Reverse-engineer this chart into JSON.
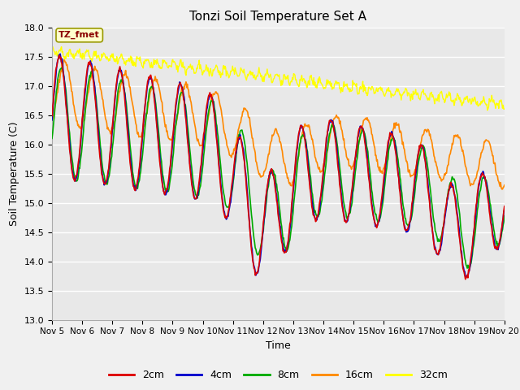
{
  "title": "Tonzi Soil Temperature Set A",
  "xlabel": "Time",
  "ylabel": "Soil Temperature (C)",
  "ylim": [
    13.0,
    18.0
  ],
  "yticks": [
    13.0,
    13.5,
    14.0,
    14.5,
    15.0,
    15.5,
    16.0,
    16.5,
    17.0,
    17.5,
    18.0
  ],
  "xtick_labels": [
    "Nov 5",
    "Nov 6",
    "Nov 7",
    "Nov 8",
    "Nov 9",
    "Nov 10",
    "Nov 11",
    "Nov 12",
    "Nov 13",
    "Nov 14",
    "Nov 15",
    "Nov 16",
    "Nov 17",
    "Nov 18",
    "Nov 19",
    "Nov 20"
  ],
  "colors": {
    "2cm": "#dd0000",
    "4cm": "#0000cc",
    "8cm": "#00aa00",
    "16cm": "#ff8800",
    "32cm": "#ffff00"
  },
  "legend_label": "TZ_fmet",
  "fig_bg": "#f0f0f0",
  "plot_bg": "#e8e8e8"
}
